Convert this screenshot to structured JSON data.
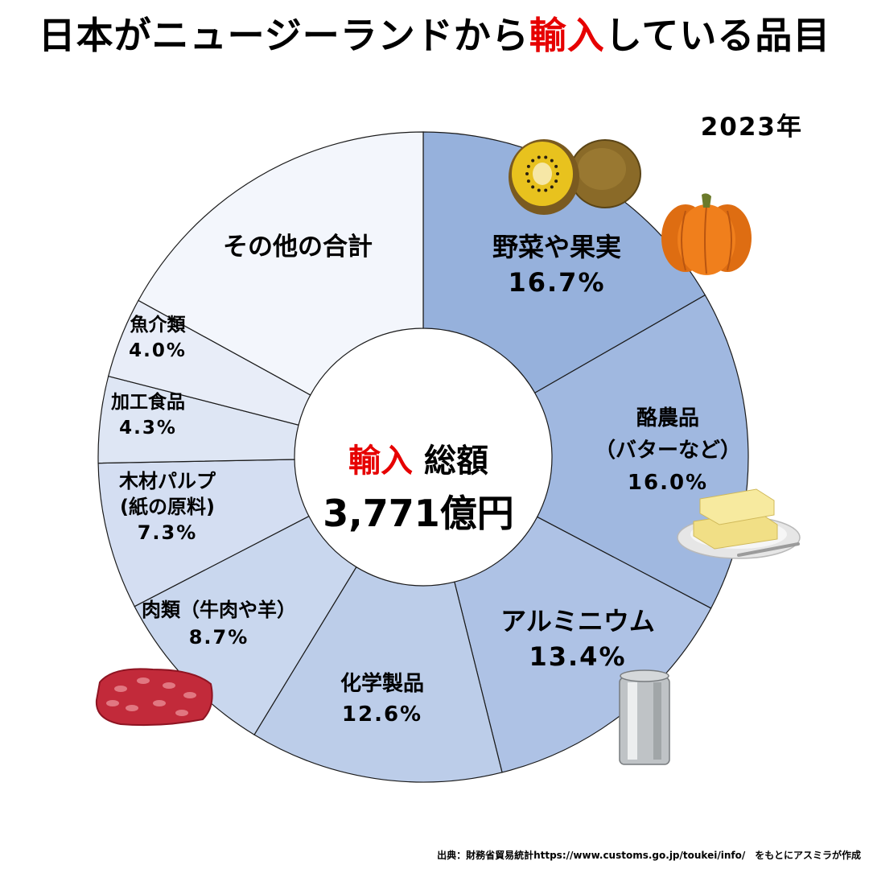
{
  "title": {
    "prefix": "日本がニュージーランドから",
    "accent": "輸入",
    "suffix": "している品目"
  },
  "year": "2023年",
  "center": {
    "accent": "輸入",
    "label": "総額",
    "total": "3,771億円"
  },
  "source": "出典：財務省貿易統計https://www.customs.go.jp/toukei/info/　をもとにアスミラが作成",
  "chart_data": {
    "type": "pie",
    "donut": true,
    "start": "top",
    "direction": "clockwise",
    "unit": "%",
    "slices": [
      {
        "label_lines": [
          "野菜や果実"
        ],
        "value": 16.7,
        "value_text": "16.7%",
        "color": "#96b1dc",
        "icon": "kiwi-pumpkin-image"
      },
      {
        "label_lines": [
          "酪農品",
          "（バターなど）"
        ],
        "value": 16.0,
        "value_text": "16.0%",
        "color": "#a0b8e0",
        "icon": "butter-image"
      },
      {
        "label_lines": [
          "アルミニウム"
        ],
        "value": 13.4,
        "value_text": "13.4%",
        "color": "#aec2e5",
        "icon": "aluminum-can-image"
      },
      {
        "label_lines": [
          "化学製品"
        ],
        "value": 12.6,
        "value_text": "12.6%",
        "color": "#bccde9",
        "icon": ""
      },
      {
        "label_lines": [
          "肉類（牛肉や羊）"
        ],
        "value": 8.7,
        "value_text": "8.7%",
        "color": "#c9d7ee",
        "icon": "meat-image"
      },
      {
        "label_lines": [
          "木材パルプ",
          "(紙の原料)"
        ],
        "value": 7.3,
        "value_text": "7.3%",
        "color": "#d4def2",
        "icon": ""
      },
      {
        "label_lines": [
          "加工食品"
        ],
        "value": 4.3,
        "value_text": "4.3%",
        "color": "#dee6f4",
        "icon": ""
      },
      {
        "label_lines": [
          "魚介類"
        ],
        "value": 4.0,
        "value_text": "4.0%",
        "color": "#e8edf8",
        "icon": ""
      },
      {
        "label_lines": [
          "その他の合計"
        ],
        "value": 17.0,
        "value_text": "",
        "color": "#f3f6fc",
        "icon": ""
      }
    ]
  }
}
